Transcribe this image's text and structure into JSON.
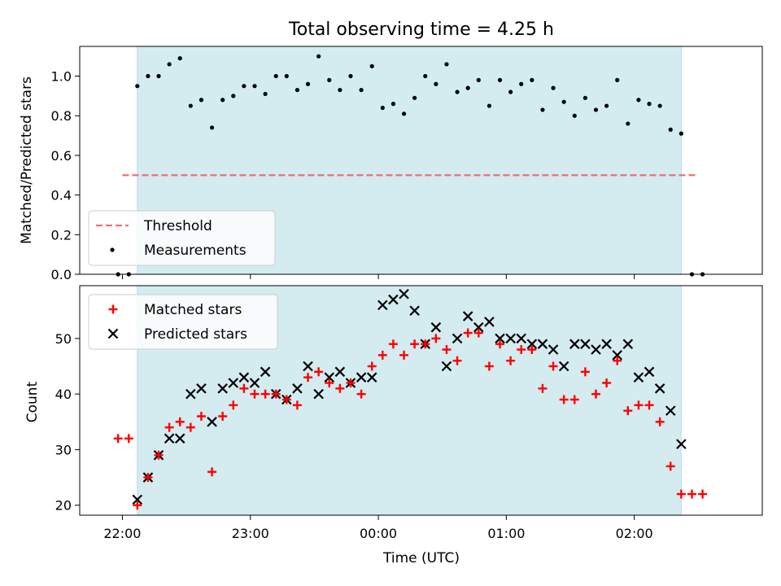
{
  "chart_data": [
    {
      "type": "scatter",
      "title": "Total observing time = 4.25 h",
      "xlabel": "",
      "ylabel": "Matched/Predicted stars",
      "ylim": [
        0,
        1.15
      ],
      "yticks": [
        "0.0",
        "0.2",
        "0.4",
        "0.6",
        "0.8",
        "1.0"
      ],
      "yticks_values": [
        0,
        0.2,
        0.4,
        0.6,
        0.8,
        1.0
      ],
      "observing_window": [
        "22:07",
        "02:22"
      ],
      "threshold": {
        "name": "Threshold",
        "value": 0.5,
        "color": "#f07070",
        "from": "22:00",
        "to": "02:30"
      },
      "series": [
        {
          "name": "Measurements",
          "color": "#000000",
          "x": [
            "21:58",
            "22:03",
            "22:07",
            "22:12",
            "22:17",
            "22:22",
            "22:27",
            "22:32",
            "22:37",
            "22:42",
            "22:47",
            "22:52",
            "22:57",
            "23:02",
            "23:07",
            "23:12",
            "23:17",
            "23:22",
            "23:27",
            "23:32",
            "23:37",
            "23:42",
            "23:47",
            "23:52",
            "23:57",
            "00:02",
            "00:07",
            "00:12",
            "00:17",
            "00:22",
            "00:27",
            "00:32",
            "00:37",
            "00:42",
            "00:47",
            "00:52",
            "00:57",
            "01:02",
            "01:07",
            "01:12",
            "01:17",
            "01:22",
            "01:27",
            "01:32",
            "01:37",
            "01:42",
            "01:47",
            "01:52",
            "01:57",
            "02:02",
            "02:07",
            "02:12",
            "02:17",
            "02:22",
            "02:27",
            "02:32"
          ],
          "y": [
            0.0,
            0.0,
            0.95,
            1.0,
            1.0,
            1.06,
            1.09,
            0.85,
            0.88,
            0.74,
            0.88,
            0.9,
            0.95,
            0.95,
            0.91,
            1.0,
            1.0,
            0.93,
            0.96,
            1.1,
            0.98,
            0.93,
            1.0,
            0.93,
            1.05,
            0.84,
            0.86,
            0.81,
            0.89,
            1.0,
            0.96,
            1.06,
            0.92,
            0.94,
            0.98,
            0.85,
            0.98,
            0.92,
            0.96,
            0.98,
            0.83,
            0.94,
            0.87,
            0.8,
            0.89,
            0.83,
            0.85,
            0.98,
            0.76,
            0.88,
            0.86,
            0.85,
            0.73,
            0.71,
            0.0,
            0.0
          ]
        }
      ],
      "legend": {
        "position": "lower left",
        "entries": [
          "Threshold",
          "Measurements"
        ]
      }
    },
    {
      "type": "scatter",
      "title": "",
      "xlabel": "Time (UTC)",
      "ylabel": "Count",
      "ylim": [
        18.2,
        59.5
      ],
      "yticks": [
        "20",
        "30",
        "40",
        "50"
      ],
      "yticks_values": [
        20,
        30,
        40,
        50
      ],
      "xlim": [
        "21:40",
        "03:00"
      ],
      "xticks": [
        "22:00",
        "23:00",
        "00:00",
        "01:00",
        "02:00"
      ],
      "observing_window": [
        "22:07",
        "02:22"
      ],
      "series": [
        {
          "name": "Matched stars",
          "color": "#ff0000",
          "marker": "plus",
          "x": [
            "21:58",
            "22:03",
            "22:07",
            "22:12",
            "22:17",
            "22:22",
            "22:27",
            "22:32",
            "22:37",
            "22:42",
            "22:47",
            "22:52",
            "22:57",
            "23:02",
            "23:07",
            "23:12",
            "23:17",
            "23:22",
            "23:27",
            "23:32",
            "23:37",
            "23:42",
            "23:47",
            "23:52",
            "23:57",
            "00:02",
            "00:07",
            "00:12",
            "00:17",
            "00:22",
            "00:27",
            "00:32",
            "00:37",
            "00:42",
            "00:47",
            "00:52",
            "00:57",
            "01:02",
            "01:07",
            "01:12",
            "01:17",
            "01:22",
            "01:27",
            "01:32",
            "01:37",
            "01:42",
            "01:47",
            "01:52",
            "01:57",
            "02:02",
            "02:07",
            "02:12",
            "02:17",
            "02:22",
            "02:27",
            "02:32"
          ],
          "y": [
            32,
            32,
            20,
            25,
            29,
            34,
            35,
            34,
            36,
            26,
            36,
            38,
            41,
            40,
            40,
            40,
            39,
            38,
            43,
            44,
            42,
            41,
            42,
            40,
            45,
            47,
            49,
            47,
            49,
            49,
            50,
            48,
            46,
            51,
            51,
            45,
            49,
            46,
            48,
            48,
            41,
            45,
            39,
            39,
            44,
            40,
            42,
            46,
            37,
            38,
            38,
            35,
            27,
            22,
            22,
            22
          ]
        },
        {
          "name": "Predicted stars",
          "color": "#000000",
          "marker": "x",
          "x": [
            "22:07",
            "22:12",
            "22:17",
            "22:22",
            "22:27",
            "22:32",
            "22:37",
            "22:42",
            "22:47",
            "22:52",
            "22:57",
            "23:02",
            "23:07",
            "23:12",
            "23:17",
            "23:22",
            "23:27",
            "23:32",
            "23:37",
            "23:42",
            "23:47",
            "23:52",
            "23:57",
            "00:02",
            "00:07",
            "00:12",
            "00:17",
            "00:22",
            "00:27",
            "00:32",
            "00:37",
            "00:42",
            "00:47",
            "00:52",
            "00:57",
            "01:02",
            "01:07",
            "01:12",
            "01:17",
            "01:22",
            "01:27",
            "01:32",
            "01:37",
            "01:42",
            "01:47",
            "01:52",
            "01:57",
            "02:02",
            "02:07",
            "02:12",
            "02:17",
            "02:22"
          ],
          "y": [
            21,
            25,
            29,
            32,
            32,
            40,
            41,
            35,
            41,
            42,
            43,
            42,
            44,
            40,
            39,
            41,
            45,
            40,
            43,
            44,
            42,
            43,
            43,
            56,
            57,
            58,
            55,
            49,
            52,
            45,
            50,
            54,
            52,
            53,
            50,
            50,
            50,
            49,
            49,
            48,
            45,
            49,
            49,
            48,
            49,
            47,
            49,
            43,
            44,
            41,
            37,
            31
          ]
        }
      ],
      "legend": {
        "position": "upper left",
        "entries": [
          "Matched stars",
          "Predicted stars"
        ]
      }
    }
  ],
  "colors": {
    "observing_window_fill": "#d4ebf0",
    "observing_window_edge": "#b8dce6"
  }
}
